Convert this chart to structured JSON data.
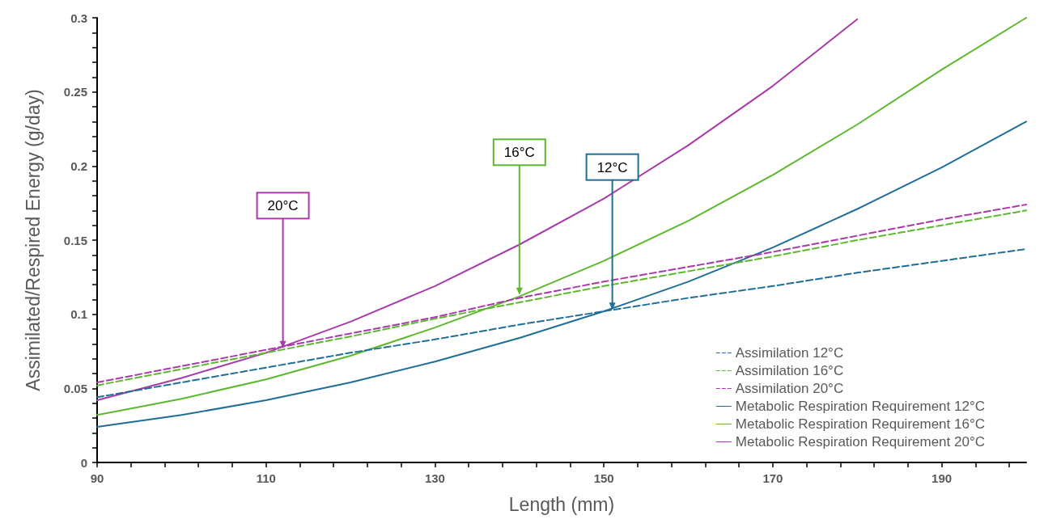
{
  "chart_data": {
    "type": "line",
    "xlabel": "Length (mm)",
    "ylabel": "Assimilated/Respired Energy (g/day)",
    "x": [
      90,
      100,
      110,
      120,
      130,
      140,
      150,
      160,
      170,
      180,
      190,
      200
    ],
    "xlim": [
      90,
      200
    ],
    "xticks": [
      90,
      {
        "value": 94,
        "label": null
      },
      {
        "value": 98,
        "label": null
      },
      {
        "value": 102,
        "label": null
      },
      {
        "value": 106,
        "label": null
      },
      110,
      {
        "value": 114,
        "label": null
      },
      {
        "value": 118,
        "label": null
      },
      {
        "value": 122,
        "label": null
      },
      {
        "value": 126,
        "label": null
      },
      130,
      {
        "value": 134,
        "label": null
      },
      {
        "value": 138,
        "label": null
      },
      {
        "value": 142,
        "label": null
      },
      {
        "value": 146,
        "label": null
      },
      150,
      {
        "value": 154,
        "label": null
      },
      {
        "value": 158,
        "label": null
      },
      {
        "value": 162,
        "label": null
      },
      {
        "value": 166,
        "label": null
      },
      170,
      {
        "value": 174,
        "label": null
      },
      {
        "value": 178,
        "label": null
      },
      {
        "value": 182,
        "label": null
      },
      {
        "value": 186,
        "label": null
      },
      190,
      {
        "value": 194,
        "label": null
      },
      {
        "value": 198,
        "label": null
      }
    ],
    "ylim": [
      0,
      0.3
    ],
    "yticks": [
      0,
      {
        "value": 0.01,
        "label": null
      },
      {
        "value": 0.02,
        "label": null
      },
      {
        "value": 0.03,
        "label": null
      },
      {
        "value": 0.04,
        "label": null
      },
      0.05,
      {
        "value": 0.06,
        "label": null
      },
      {
        "value": 0.07,
        "label": null
      },
      {
        "value": 0.08,
        "label": null
      },
      {
        "value": 0.09,
        "label": null
      },
      0.1,
      {
        "value": 0.11,
        "label": null
      },
      {
        "value": 0.12,
        "label": null
      },
      {
        "value": 0.13,
        "label": null
      },
      {
        "value": 0.14,
        "label": null
      },
      0.15,
      {
        "value": 0.16,
        "label": null
      },
      {
        "value": 0.17,
        "label": null
      },
      {
        "value": 0.18,
        "label": null
      },
      {
        "value": 0.19,
        "label": null
      },
      0.2,
      {
        "value": 0.21,
        "label": null
      },
      {
        "value": 0.22,
        "label": null
      },
      {
        "value": 0.23,
        "label": null
      },
      {
        "value": 0.24,
        "label": null
      },
      0.25,
      {
        "value": 0.26,
        "label": null
      },
      {
        "value": 0.27,
        "label": null
      },
      {
        "value": 0.28,
        "label": null
      },
      {
        "value": 0.29,
        "label": null
      },
      0.3
    ],
    "grid": false,
    "legend": "bottom right",
    "marker": "none",
    "series": [
      {
        "name": "Assimilation 12°C",
        "color": "#1f6e96",
        "line_style": "dashed",
        "values": [
          0.044,
          0.054,
          0.064,
          0.074,
          0.083,
          0.093,
          0.102,
          0.111,
          0.119,
          0.128,
          0.136,
          0.144
        ]
      },
      {
        "name": "Assimilation 16°C",
        "color": "#5cb82e",
        "line_style": "dashed",
        "values": [
          0.052,
          0.063,
          0.074,
          0.085,
          0.097,
          0.108,
          0.119,
          0.129,
          0.139,
          0.15,
          0.16,
          0.17
        ]
      },
      {
        "name": "Assimilation 20°C",
        "color": "#a83aaa",
        "line_style": "dashed",
        "values": [
          0.054,
          0.065,
          0.076,
          0.087,
          0.098,
          0.111,
          0.122,
          0.132,
          0.142,
          0.153,
          0.164,
          0.174
        ]
      },
      {
        "name": "Metabolic Respiration Requirement 12°C",
        "color": "#1f6e96",
        "line_style": "solid",
        "values": [
          0.024,
          0.032,
          0.042,
          0.054,
          0.068,
          0.084,
          0.102,
          0.122,
          0.145,
          0.171,
          0.199,
          0.23
        ]
      },
      {
        "name": "Metabolic Respiration Requirement 16°C",
        "color": "#5cb82e",
        "line_style": "solid",
        "values": [
          0.032,
          0.043,
          0.056,
          0.072,
          0.091,
          0.112,
          0.136,
          0.163,
          0.194,
          0.228,
          0.265,
          0.3
        ]
      },
      {
        "name": "Metabolic Respiration Requirement 20°C",
        "color": "#a83aaa",
        "line_style": "solid",
        "values": [
          0.042,
          0.057,
          0.074,
          0.095,
          0.119,
          0.147,
          0.178,
          0.214,
          0.254,
          0.299,
          null,
          null
        ]
      }
    ],
    "annotations": [
      {
        "text": "20°C",
        "x": 112,
        "y": 0.077
      },
      {
        "text": "16°C",
        "x": 140,
        "y": 0.113
      },
      {
        "text": "12°C",
        "x": 151,
        "y": 0.103
      }
    ]
  }
}
